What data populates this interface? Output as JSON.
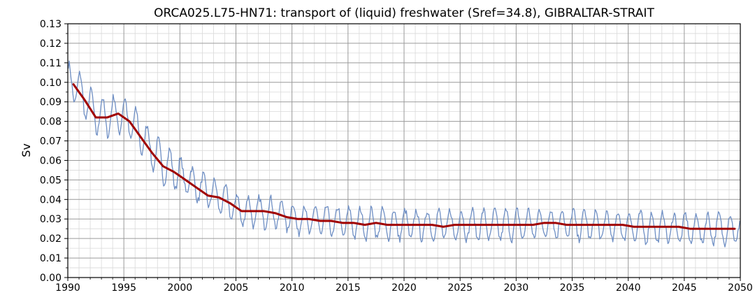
{
  "chart_data": {
    "type": "line",
    "title": "ORCA025.L75-HN71: transport of (liquid) freshwater (Sref=34.8), GIBRALTAR-STRAIT",
    "xlabel": "",
    "ylabel": "Sv",
    "xlim": [
      1990,
      2050
    ],
    "ylim": [
      0.0,
      0.13
    ],
    "x_ticks": [
      "1990",
      "1995",
      "2000",
      "2005",
      "2010",
      "2015",
      "2020",
      "2025",
      "2030",
      "2035",
      "2040",
      "2045",
      "2050"
    ],
    "y_ticks": [
      "0.00",
      "0.01",
      "0.02",
      "0.03",
      "0.04",
      "0.05",
      "0.06",
      "0.07",
      "0.08",
      "0.09",
      "0.10",
      "0.11",
      "0.12",
      "0.13"
    ],
    "grid": true,
    "legend": "none",
    "series": [
      {
        "role": "monthly",
        "color": "#6f8fc4",
        "seasonal_amplitude_note": "monthly values oscillate around the annual mean with an amplitude of roughly 0.008 Sv",
        "annual_envelope": {
          "x": [
            1990.5,
            1992.5,
            1993.5,
            1994.5,
            1995.5,
            1998.5,
            1999.5,
            2001.5,
            2003.5,
            2005.5,
            2008.5,
            2010.5,
            2015.5,
            2020.5,
            2025.5,
            2030.5,
            2033.5,
            2035.5,
            2040.5,
            2045.5,
            2049.5
          ],
          "y": [
            0.1,
            0.083,
            0.082,
            0.084,
            0.081,
            0.058,
            0.055,
            0.047,
            0.041,
            0.034,
            0.033,
            0.03,
            0.028,
            0.027,
            0.027,
            0.027,
            0.028,
            0.027,
            0.026,
            0.025,
            0.025
          ]
        }
      },
      {
        "role": "annual-mean",
        "color": "#a00000",
        "x": [
          1990.5,
          1991.5,
          1992.5,
          1993.5,
          1994.5,
          1995.5,
          1996.5,
          1997.5,
          1998.5,
          1999.5,
          2000.5,
          2001.5,
          2002.5,
          2003.5,
          2004.5,
          2005.5,
          2006.5,
          2007.5,
          2008.5,
          2009.5,
          2010.5,
          2011.5,
          2012.5,
          2013.5,
          2014.5,
          2015.5,
          2016.5,
          2017.5,
          2018.5,
          2019.5,
          2020.5,
          2021.5,
          2022.5,
          2023.5,
          2024.5,
          2025.5,
          2026.5,
          2027.5,
          2028.5,
          2029.5,
          2030.5,
          2031.5,
          2032.5,
          2033.5,
          2034.5,
          2035.5,
          2036.5,
          2037.5,
          2038.5,
          2039.5,
          2040.5,
          2041.5,
          2042.5,
          2043.5,
          2044.5,
          2045.5,
          2046.5,
          2047.5,
          2048.5,
          2049.5
        ],
        "y": [
          0.099,
          0.091,
          0.082,
          0.082,
          0.084,
          0.08,
          0.072,
          0.064,
          0.057,
          0.054,
          0.05,
          0.046,
          0.042,
          0.041,
          0.038,
          0.034,
          0.034,
          0.034,
          0.033,
          0.031,
          0.03,
          0.03,
          0.029,
          0.029,
          0.028,
          0.028,
          0.027,
          0.028,
          0.027,
          0.027,
          0.027,
          0.027,
          0.027,
          0.026,
          0.027,
          0.027,
          0.027,
          0.027,
          0.027,
          0.027,
          0.027,
          0.027,
          0.028,
          0.028,
          0.027,
          0.027,
          0.027,
          0.027,
          0.027,
          0.027,
          0.026,
          0.026,
          0.026,
          0.026,
          0.026,
          0.025,
          0.025,
          0.025,
          0.025,
          0.025
        ]
      }
    ]
  }
}
